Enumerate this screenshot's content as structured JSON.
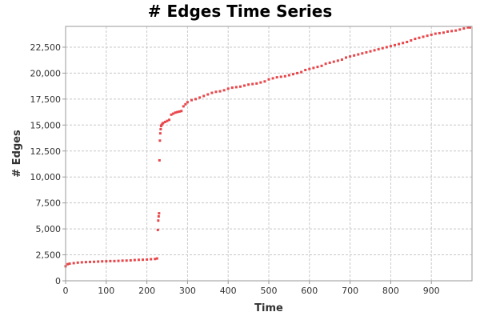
{
  "chart_data": {
    "type": "scatter",
    "title": "# Edges Time Series",
    "xlabel": "Time",
    "ylabel": "# Edges",
    "xlim": [
      0,
      1000
    ],
    "ylim": [
      0,
      24500
    ],
    "xticks": [
      0,
      100,
      200,
      300,
      400,
      500,
      600,
      700,
      800,
      900
    ],
    "yticks": [
      0,
      2500,
      5000,
      7500,
      10000,
      12500,
      15000,
      17500,
      20000,
      22500
    ],
    "grid": true,
    "legend": "none",
    "point_color": "#e8464a",
    "series": [
      {
        "x": [
          0,
          5,
          10,
          20,
          30,
          40,
          50,
          60,
          70,
          80,
          90,
          100,
          110,
          120,
          130,
          140,
          150,
          160,
          170,
          180,
          190,
          200,
          210,
          220,
          225,
          227,
          228,
          229,
          230,
          231,
          232,
          233,
          234,
          235,
          236,
          238,
          240,
          245,
          250,
          255,
          260,
          265,
          270,
          275,
          280,
          285,
          290,
          295,
          300,
          310,
          320,
          330,
          340,
          350,
          360,
          370,
          380,
          390,
          400,
          410,
          420,
          430,
          440,
          450,
          460,
          470,
          480,
          490,
          500,
          510,
          520,
          530,
          540,
          550,
          560,
          570,
          580,
          590,
          600,
          610,
          620,
          630,
          640,
          650,
          660,
          670,
          680,
          690,
          700,
          710,
          720,
          730,
          740,
          750,
          760,
          770,
          780,
          790,
          800,
          810,
          820,
          830,
          840,
          850,
          860,
          870,
          880,
          890,
          900,
          910,
          920,
          930,
          940,
          950,
          960,
          970,
          980,
          990,
          995
        ],
        "y": [
          1400,
          1600,
          1650,
          1700,
          1750,
          1780,
          1800,
          1820,
          1830,
          1850,
          1870,
          1880,
          1900,
          1900,
          1920,
          1940,
          1950,
          1970,
          2000,
          2020,
          2030,
          2050,
          2080,
          2100,
          2150,
          4900,
          5800,
          6200,
          6500,
          11600,
          13500,
          14200,
          14600,
          14900,
          15000,
          15100,
          15200,
          15300,
          15400,
          15500,
          16000,
          16100,
          16200,
          16250,
          16300,
          16350,
          16800,
          17000,
          17200,
          17400,
          17500,
          17650,
          17800,
          17950,
          18100,
          18200,
          18250,
          18350,
          18500,
          18600,
          18650,
          18700,
          18800,
          18900,
          18950,
          19000,
          19100,
          19200,
          19400,
          19500,
          19600,
          19650,
          19700,
          19800,
          19900,
          20000,
          20100,
          20300,
          20400,
          20500,
          20600,
          20700,
          20900,
          21000,
          21100,
          21200,
          21300,
          21500,
          21600,
          21700,
          21800,
          21900,
          22000,
          22100,
          22200,
          22300,
          22400,
          22500,
          22600,
          22700,
          22800,
          22900,
          23000,
          23150,
          23300,
          23400,
          23500,
          23600,
          23700,
          23800,
          23850,
          23900,
          24000,
          24050,
          24100,
          24200,
          24300,
          24400,
          24400
        ]
      }
    ]
  }
}
